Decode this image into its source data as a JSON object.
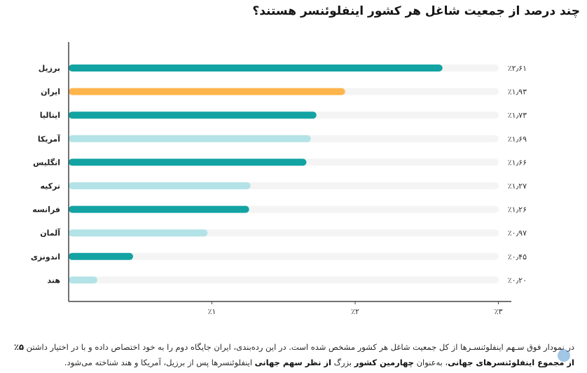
{
  "title": "چند درصد از جمعیت شاغل هر کشور اینفلوئنسر هستند؟",
  "caption": {
    "line1": "در نمودار فوق سـهم اینفلوئنسـرها از کل جمعیت شاغل هر کشور مشخص شده است. در این رده‌بندی، ایران جایگاه دوم را به خود اختصاص داده و با در اختیار داشتن",
    "bold1": "۵٪ از مجموع اینفلوئنسرهای جهانی",
    "text2": "، به‌عنوان",
    "bold2": "چهارمین کشور",
    "text3": "بزرگ",
    "bold3": "از نظر سهم جهانی",
    "text4": "اینفلوئنسرها پس از برزیل، آمریکا و هند شناخته می‌شود."
  },
  "colors": {
    "dark": "#13a3a3",
    "light": "#b3e3e6",
    "iran": "#ffb54d",
    "track": "#f4f4f4",
    "axis": "#444444"
  },
  "chart_data": {
    "type": "bar",
    "orientation": "horizontal",
    "categories": [
      "برزیل",
      "ایران",
      "ایتالیا",
      "آمریکا",
      "انگلیس",
      "ترکیه",
      "فرانسه",
      "آلمان",
      "اندونزی",
      "هند"
    ],
    "values": [
      2.61,
      1.93,
      1.73,
      1.69,
      1.66,
      1.27,
      1.26,
      0.97,
      0.45,
      0.2
    ],
    "value_labels": [
      "٪۲٫۶۱",
      "٪۱٫۹۳",
      "٪۱٫۷۳",
      "٪۱٫۶۹",
      "٪۱٫۶۶",
      "٪۱٫۲۷",
      "٪۱٫۲۶",
      "٪۰٫۹۷",
      "٪۰٫۴۵",
      "٪۰٫۲۰"
    ],
    "bar_colors": [
      "dark",
      "iran",
      "dark",
      "light",
      "dark",
      "light",
      "dark",
      "light",
      "dark",
      "light"
    ],
    "xlim": [
      0,
      3
    ],
    "xticks": [
      1,
      2,
      3
    ],
    "xtick_labels": [
      "٪۱",
      "٪۲",
      "٪۳"
    ],
    "title": "چند درصد از جمعیت شاغل هر کشور اینفلوئنسر هستند؟",
    "xlabel": "",
    "ylabel": ""
  }
}
